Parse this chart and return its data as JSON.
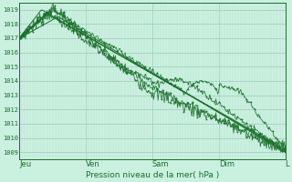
{
  "title": "",
  "xlabel": "Pression niveau de la mer( hPa )",
  "ylabel": "",
  "background_color": "#caf0e0",
  "grid_major_color": "#99ccbb",
  "grid_minor_color": "#b8e0d0",
  "line_color": "#1a6e2a",
  "ylim": [
    1008.5,
    1019.5
  ],
  "yticks": [
    1009,
    1010,
    1011,
    1012,
    1013,
    1014,
    1015,
    1016,
    1017,
    1018,
    1019
  ],
  "day_labels": [
    "Jeu",
    "Ven",
    "Sam",
    "Dim",
    "L"
  ],
  "day_positions": [
    0,
    24,
    48,
    72,
    96
  ],
  "total_hours": 96
}
